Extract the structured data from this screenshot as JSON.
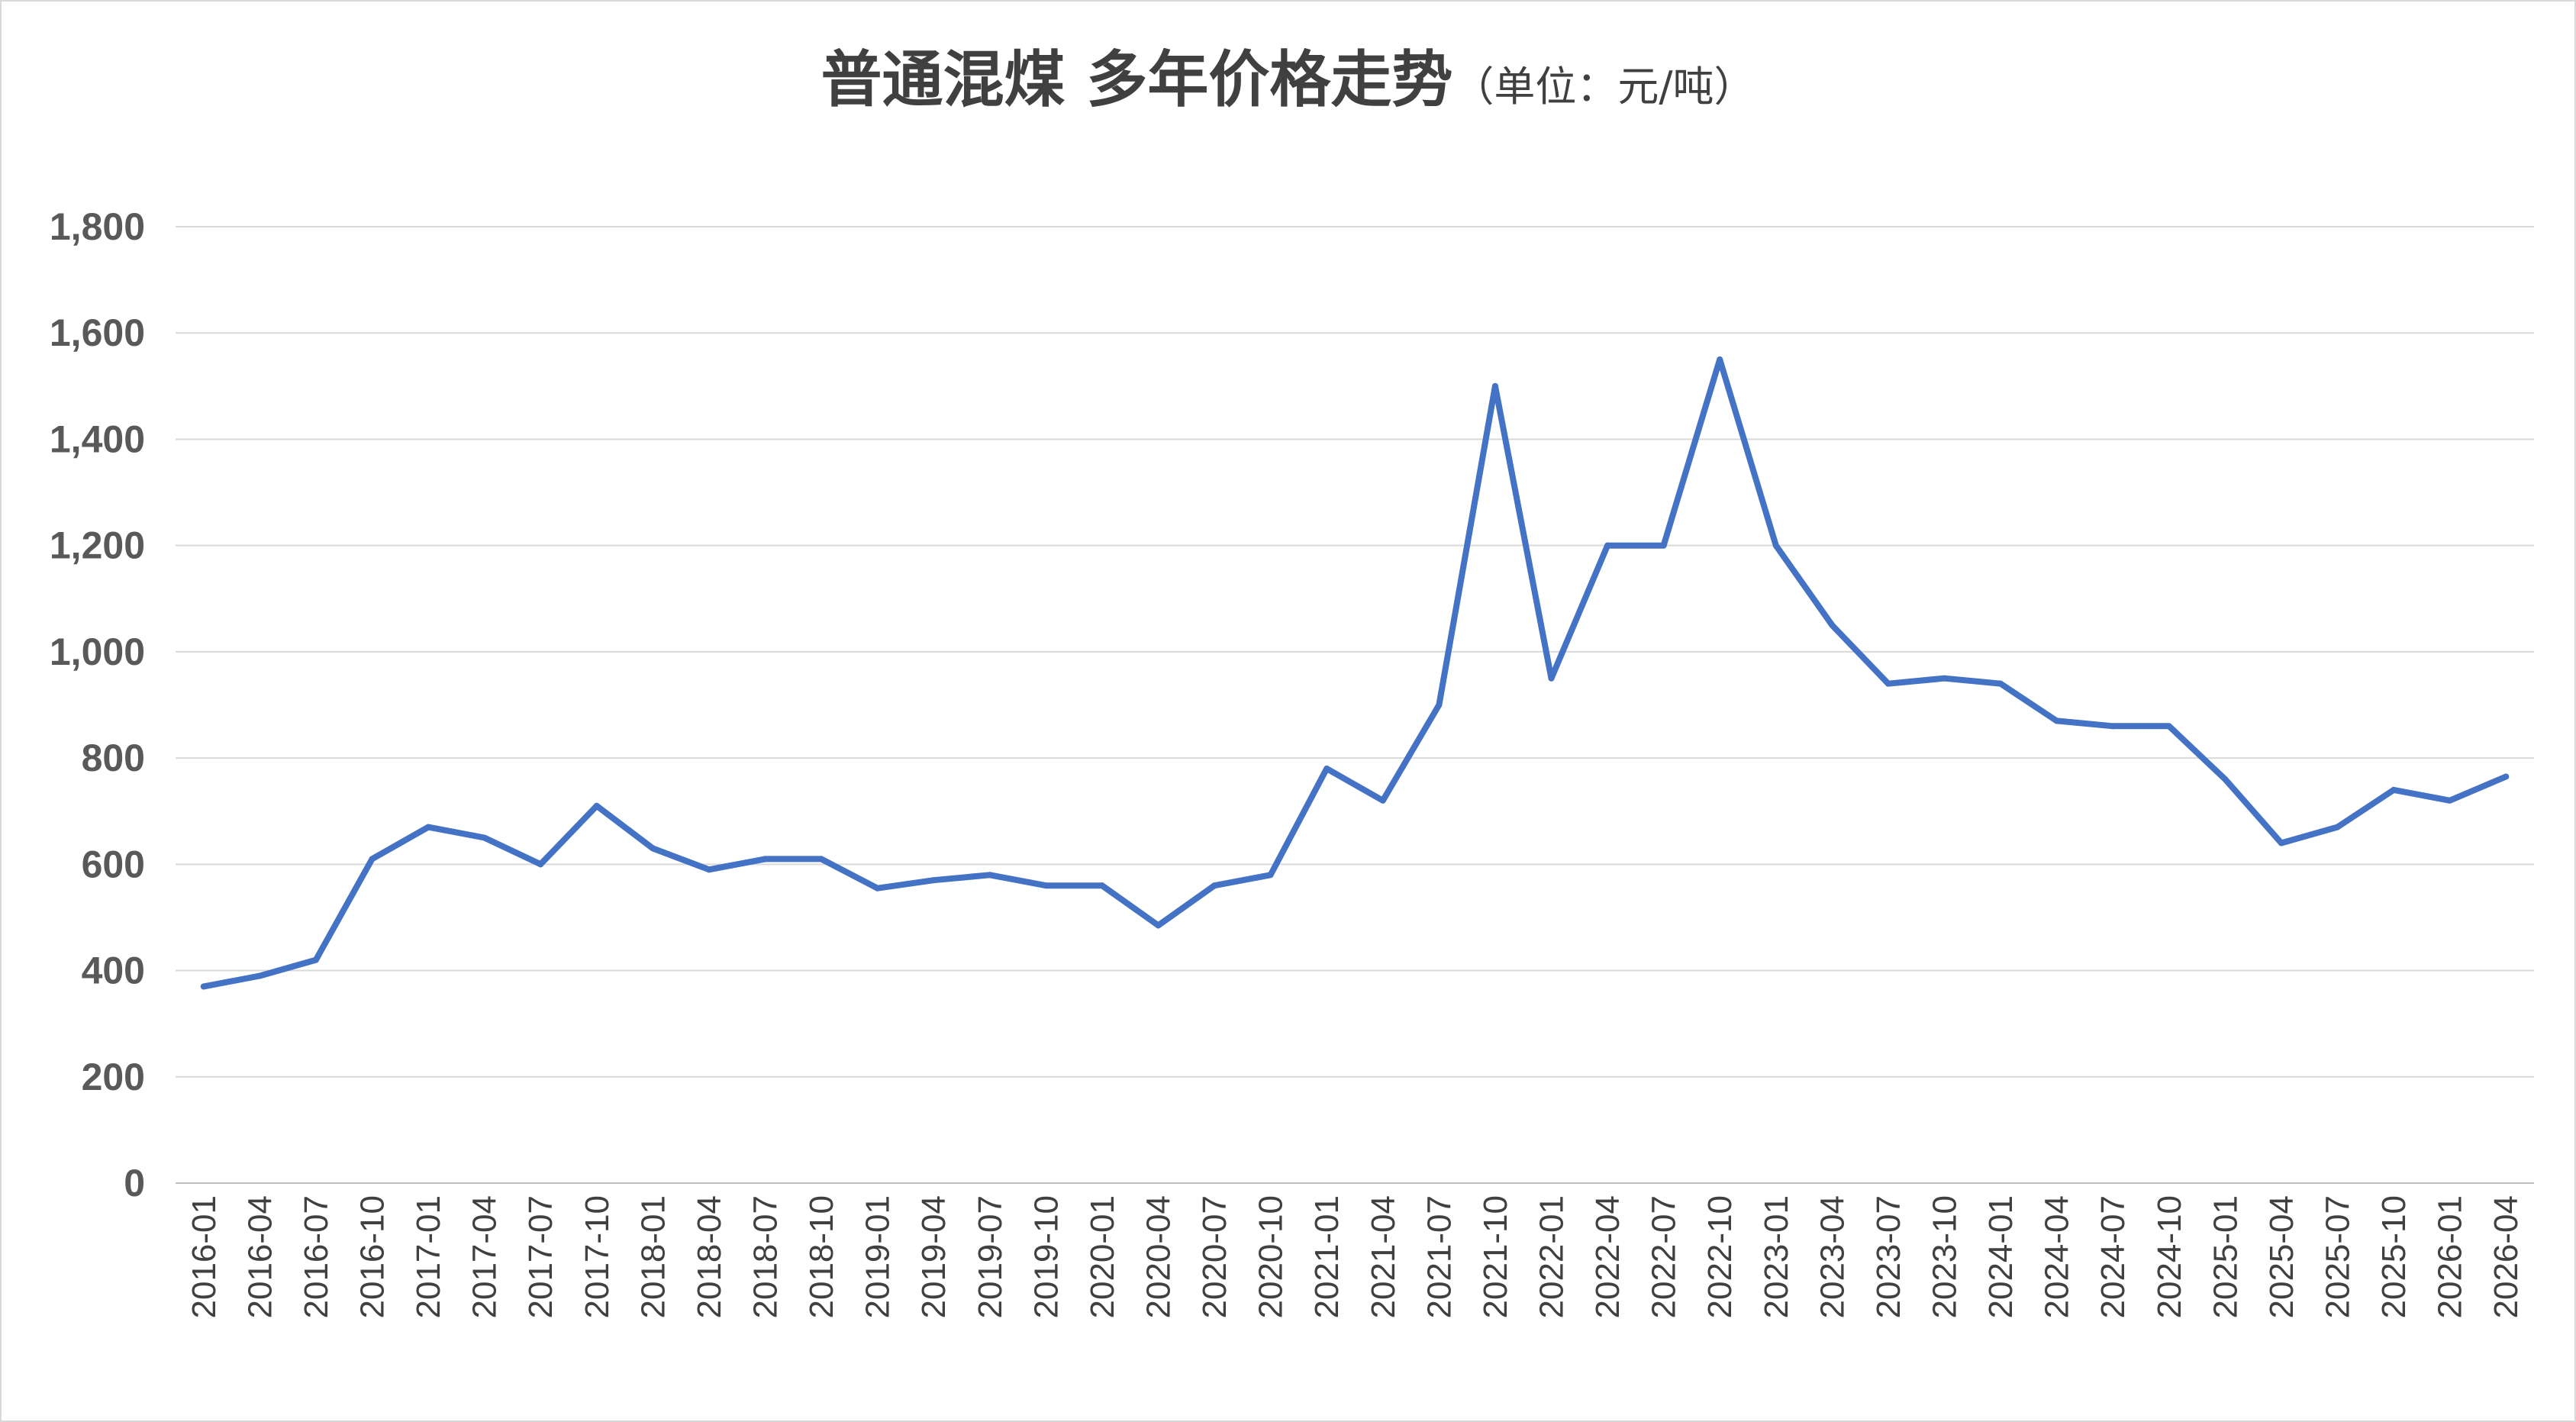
{
  "chart_data": {
    "type": "line",
    "title": "普通混煤 多年价格走势",
    "subtitle": "（单位：元/吨）",
    "xlabel": "",
    "ylabel": "",
    "ylim": [
      0,
      1800
    ],
    "y_ticks": [
      "0",
      "200",
      "400",
      "600",
      "800",
      "1,000",
      "1,200",
      "1,400",
      "1,600",
      "1,800"
    ],
    "grid": true,
    "legend": "none",
    "line_color": "#4472C4",
    "x": [
      "2016-01",
      "2016-04",
      "2016-07",
      "2016-10",
      "2017-01",
      "2017-04",
      "2017-07",
      "2017-10",
      "2018-01",
      "2018-04",
      "2018-07",
      "2018-10",
      "2019-01",
      "2019-04",
      "2019-07",
      "2019-10",
      "2020-01",
      "2020-04",
      "2020-07",
      "2020-10",
      "2021-01",
      "2021-04",
      "2021-07",
      "2021-10",
      "2022-01",
      "2022-04",
      "2022-07",
      "2022-10",
      "2023-01",
      "2023-04",
      "2023-07",
      "2023-10",
      "2024-01",
      "2024-04",
      "2024-07",
      "2024-10",
      "2025-01",
      "2025-04",
      "2025-07",
      "2025-10",
      "2026-01",
      "2026-04"
    ],
    "series": [
      {
        "values": [
          370,
          390,
          420,
          610,
          670,
          650,
          600,
          710,
          630,
          590,
          610,
          610,
          555,
          570,
          580,
          560,
          560,
          485,
          560,
          580,
          780,
          720,
          900,
          1500,
          950,
          1200,
          1200,
          1550,
          1200,
          1050,
          940,
          950,
          940,
          870,
          860,
          860,
          760,
          640,
          670,
          740,
          720,
          765
        ]
      }
    ]
  }
}
